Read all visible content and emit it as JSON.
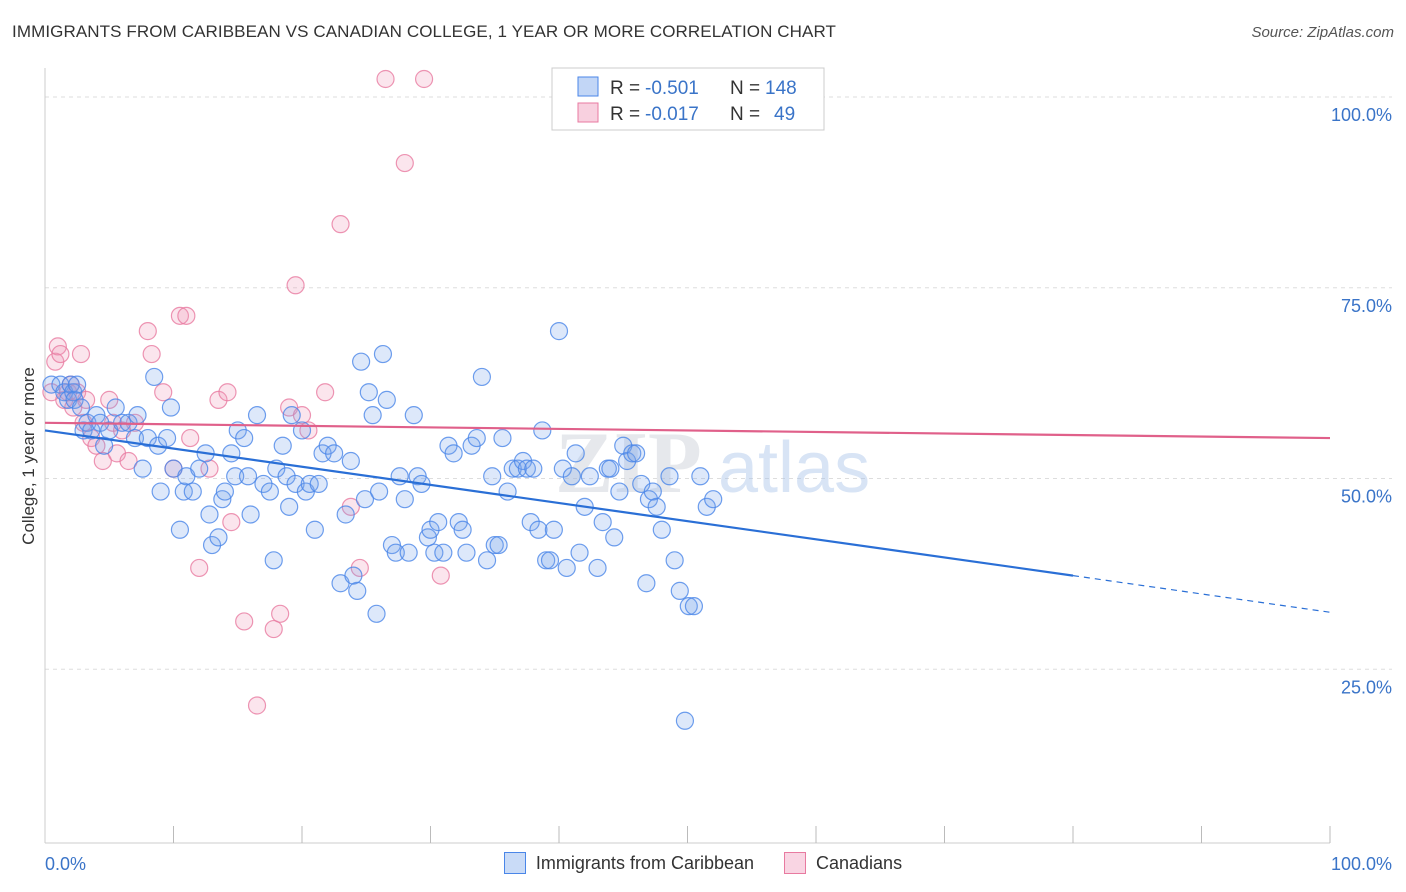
{
  "header": {
    "title": "IMMIGRANTS FROM CARIBBEAN VS CANADIAN COLLEGE, 1 YEAR OR MORE CORRELATION CHART",
    "source": "Source: ZipAtlas.com"
  },
  "colors": {
    "blue": "#4a86e8",
    "blue_fill": "rgba(120,165,235,0.25)",
    "blue_line": "#2a6fd6",
    "pink": "#e87aa0",
    "pink_fill": "rgba(240,150,185,0.25)",
    "pink_line": "#e0608a",
    "tick_label": "#3a74c8",
    "grid": "#dddddd"
  },
  "legend_stats": [
    {
      "r_label": "R =",
      "r_value": "-0.501",
      "n_label": "N =",
      "n_value": "148",
      "color": "blue"
    },
    {
      "r_label": "R =",
      "r_value": "-0.017",
      "n_label": "N =",
      "n_value": "49",
      "color": "pink"
    }
  ],
  "legend_bottom": [
    {
      "label": "Immigrants from Caribbean",
      "color": "blue"
    },
    {
      "label": "Canadians",
      "color": "pink"
    }
  ],
  "watermark": {
    "zip": "ZIP",
    "atlas": "atlas"
  },
  "chart_data": {
    "type": "scatter",
    "xlabel": "",
    "ylabel": "College, 1 year or more",
    "xlim": [
      0,
      100
    ],
    "ylim": [
      0,
      100
    ],
    "x_tick_labels": [
      "0.0%",
      "100.0%"
    ],
    "y_ticks": [
      25,
      50,
      75,
      100
    ],
    "y_tick_labels": [
      "25.0%",
      "50.0%",
      "75.0%",
      "100.0%"
    ],
    "grid": true,
    "legend_position": "top-center",
    "series": [
      {
        "name": "Immigrants from Caribbean",
        "color": "blue",
        "trend": {
          "x0": 0,
          "y0": 54.0,
          "x1": 80,
          "y1": 35.0,
          "dashed_to_x": 100,
          "dashed_to_y": 30.2
        },
        "points": [
          [
            0.5,
            60
          ],
          [
            1.2,
            60
          ],
          [
            1.5,
            59
          ],
          [
            1.8,
            58
          ],
          [
            2.0,
            60
          ],
          [
            2.2,
            59
          ],
          [
            2.3,
            58
          ],
          [
            2.5,
            60
          ],
          [
            2.8,
            57
          ],
          [
            3,
            54
          ],
          [
            3.3,
            55
          ],
          [
            3.6,
            54
          ],
          [
            4,
            56
          ],
          [
            4.3,
            55
          ],
          [
            4.6,
            52
          ],
          [
            5,
            54
          ],
          [
            5.5,
            57
          ],
          [
            6,
            55
          ],
          [
            6.5,
            55
          ],
          [
            7,
            53
          ],
          [
            7.2,
            56
          ],
          [
            7.6,
            49
          ],
          [
            8,
            53
          ],
          [
            8.5,
            61
          ],
          [
            8.8,
            52
          ],
          [
            9,
            46
          ],
          [
            9.5,
            53
          ],
          [
            9.8,
            57
          ],
          [
            10,
            49
          ],
          [
            10.5,
            41
          ],
          [
            10.8,
            46
          ],
          [
            11,
            48
          ],
          [
            11.5,
            46
          ],
          [
            12,
            49
          ],
          [
            12.5,
            51
          ],
          [
            12.8,
            43
          ],
          [
            13,
            39
          ],
          [
            13.5,
            40
          ],
          [
            13.8,
            45
          ],
          [
            14,
            46
          ],
          [
            14.5,
            51
          ],
          [
            14.8,
            48
          ],
          [
            15,
            54
          ],
          [
            15.5,
            53
          ],
          [
            15.8,
            48
          ],
          [
            16,
            43
          ],
          [
            16.5,
            56
          ],
          [
            17,
            47
          ],
          [
            17.5,
            46
          ],
          [
            17.8,
            37
          ],
          [
            18,
            49
          ],
          [
            18.5,
            52
          ],
          [
            18.8,
            48
          ],
          [
            19,
            44
          ],
          [
            19.2,
            56
          ],
          [
            19.5,
            47
          ],
          [
            20,
            54
          ],
          [
            20.3,
            46
          ],
          [
            20.6,
            47
          ],
          [
            21,
            41
          ],
          [
            21.3,
            47
          ],
          [
            21.6,
            51
          ],
          [
            22,
            52
          ],
          [
            22.5,
            51
          ],
          [
            23,
            34
          ],
          [
            23.4,
            43
          ],
          [
            23.8,
            50
          ],
          [
            24,
            35
          ],
          [
            24.3,
            33
          ],
          [
            24.6,
            63
          ],
          [
            24.9,
            45
          ],
          [
            25.2,
            59
          ],
          [
            25.5,
            56
          ],
          [
            25.8,
            30
          ],
          [
            26,
            46
          ],
          [
            26.3,
            64
          ],
          [
            26.6,
            58
          ],
          [
            27,
            39
          ],
          [
            27.3,
            38
          ],
          [
            27.6,
            48
          ],
          [
            28,
            45
          ],
          [
            28.3,
            38
          ],
          [
            28.7,
            56
          ],
          [
            29,
            48
          ],
          [
            29.3,
            47
          ],
          [
            29.8,
            40
          ],
          [
            30,
            41
          ],
          [
            30.3,
            38
          ],
          [
            30.6,
            42
          ],
          [
            31,
            38
          ],
          [
            31.4,
            52
          ],
          [
            31.8,
            51
          ],
          [
            32.2,
            42
          ],
          [
            32.5,
            41
          ],
          [
            32.8,
            38
          ],
          [
            33.2,
            52
          ],
          [
            33.6,
            53
          ],
          [
            34,
            61
          ],
          [
            34.4,
            37
          ],
          [
            34.8,
            48
          ],
          [
            35,
            39
          ],
          [
            35.3,
            39
          ],
          [
            35.6,
            53
          ],
          [
            36,
            46
          ],
          [
            36.4,
            49
          ],
          [
            36.8,
            49
          ],
          [
            37.2,
            50
          ],
          [
            37.5,
            49
          ],
          [
            37.8,
            42
          ],
          [
            38,
            49
          ],
          [
            38.4,
            41
          ],
          [
            38.7,
            54
          ],
          [
            39,
            37
          ],
          [
            39.3,
            37
          ],
          [
            39.6,
            41
          ],
          [
            40,
            67
          ],
          [
            40.3,
            49
          ],
          [
            40.6,
            36
          ],
          [
            41,
            48
          ],
          [
            41.3,
            51
          ],
          [
            41.6,
            38
          ],
          [
            42,
            44
          ],
          [
            42.4,
            48
          ],
          [
            43,
            36
          ],
          [
            43.4,
            42
          ],
          [
            43.8,
            49
          ],
          [
            44,
            49
          ],
          [
            44.3,
            40
          ],
          [
            44.7,
            46
          ],
          [
            45,
            52
          ],
          [
            45.3,
            50
          ],
          [
            45.7,
            51
          ],
          [
            46,
            51
          ],
          [
            46.4,
            47
          ],
          [
            46.8,
            34
          ],
          [
            47,
            45
          ],
          [
            47.3,
            46
          ],
          [
            47.6,
            44
          ],
          [
            48,
            41
          ],
          [
            48.6,
            48
          ],
          [
            49,
            37
          ],
          [
            49.4,
            33
          ],
          [
            49.8,
            16
          ],
          [
            50.1,
            31
          ],
          [
            50.5,
            31
          ],
          [
            51,
            48
          ],
          [
            51.5,
            44
          ],
          [
            52,
            45
          ]
        ]
      },
      {
        "name": "Canadians",
        "color": "pink",
        "trend": {
          "x0": 0,
          "y0": 55.0,
          "x1": 100,
          "y1": 53.0
        },
        "points": [
          [
            0.5,
            59
          ],
          [
            0.8,
            63
          ],
          [
            1.0,
            65
          ],
          [
            1.2,
            64
          ],
          [
            1.5,
            58
          ],
          [
            1.8,
            59
          ],
          [
            2.0,
            60
          ],
          [
            2.2,
            57
          ],
          [
            2.5,
            59
          ],
          [
            2.8,
            64
          ],
          [
            3,
            55
          ],
          [
            3.2,
            58
          ],
          [
            3.6,
            53
          ],
          [
            4,
            52
          ],
          [
            4.5,
            50
          ],
          [
            5,
            58
          ],
          [
            5.3,
            55
          ],
          [
            5.6,
            51
          ],
          [
            6,
            54
          ],
          [
            6.5,
            50
          ],
          [
            7,
            55
          ],
          [
            8,
            67
          ],
          [
            8.3,
            64
          ],
          [
            9.2,
            59
          ],
          [
            10,
            49
          ],
          [
            10.5,
            69
          ],
          [
            11,
            69
          ],
          [
            11.3,
            53
          ],
          [
            12,
            36
          ],
          [
            12.8,
            49
          ],
          [
            13.5,
            58
          ],
          [
            14.2,
            59
          ],
          [
            14.5,
            42
          ],
          [
            15.5,
            29
          ],
          [
            16.5,
            18
          ],
          [
            17.8,
            28
          ],
          [
            18.3,
            30
          ],
          [
            19,
            57
          ],
          [
            19.5,
            73
          ],
          [
            20,
            56
          ],
          [
            20.5,
            54
          ],
          [
            21.8,
            59
          ],
          [
            23,
            81
          ],
          [
            23.8,
            44
          ],
          [
            24.5,
            36
          ],
          [
            26.5,
            100
          ],
          [
            28,
            89
          ],
          [
            29.5,
            100
          ],
          [
            30.8,
            35
          ]
        ]
      }
    ]
  }
}
